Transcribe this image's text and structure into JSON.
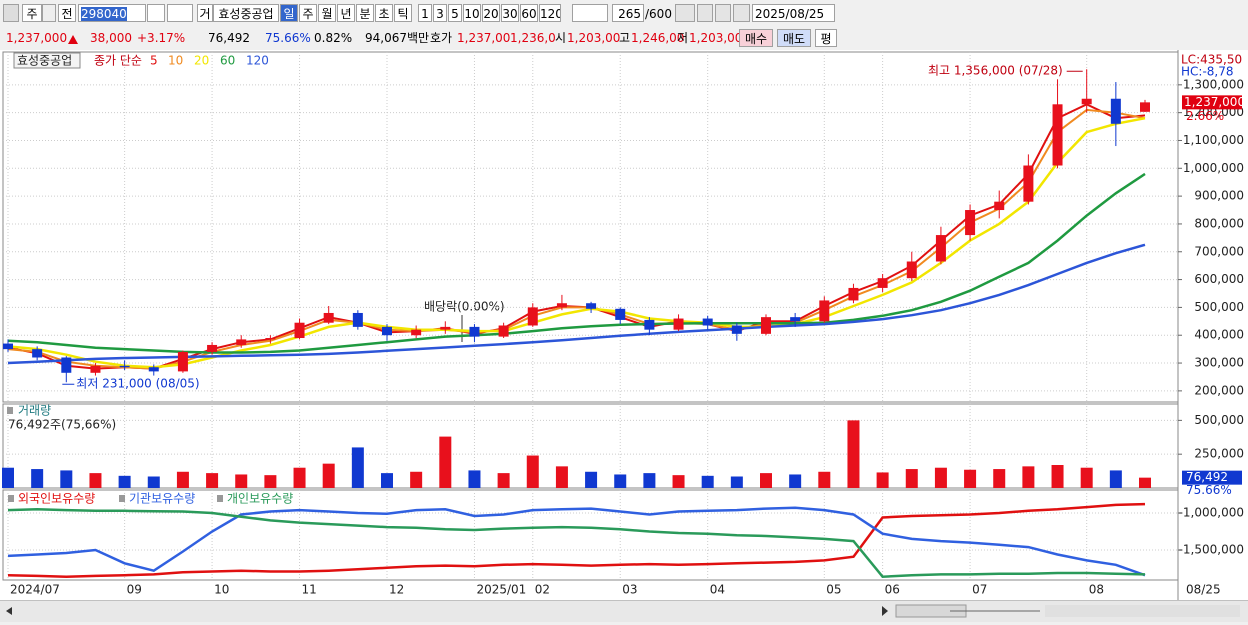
{
  "toolbar": {
    "market": "주",
    "mode": "전",
    "code": "298040",
    "trade": "거",
    "name": "효성중공업",
    "periods": [
      "일",
      "주",
      "월",
      "년",
      "분",
      "초",
      "틱"
    ],
    "intervals": [
      "1",
      "3",
      "5",
      "10",
      "20",
      "30",
      "60",
      "120"
    ],
    "count": "265",
    "max": "/600",
    "date": "2025/08/25"
  },
  "quote": {
    "price": "1,237,000",
    "change": "38,000",
    "rate": "+3.17%",
    "volume": "76,492",
    "volume_rate": "75.66%",
    "turnover": "0.82%",
    "amount": "94,067백만",
    "ask_label": "호가",
    "ask": "1,237,00",
    "bid": "1,236,0",
    "open_label": "시",
    "open": "1,203,00",
    "high_label": "고",
    "high": "1,246,00",
    "low_label": "저",
    "low": "1,203,00",
    "buy": "매수",
    "sell": "매도",
    "avg": "평"
  },
  "chart_data": [
    {
      "type": "candlestick",
      "name": "효성중공업",
      "legend_title": "종가 단순",
      "up_color": "#e8101c",
      "down_color": "#1038d0",
      "open": [
        370000,
        350000,
        320000,
        265000,
        290000,
        285000,
        270000,
        340000,
        365000,
        385000,
        390000,
        445000,
        480000,
        430000,
        400000,
        420000,
        430000,
        395000,
        435000,
        500000,
        515000,
        495000,
        455000,
        420000,
        460000,
        435000,
        405000,
        465000,
        450000,
        525000,
        570000,
        605000,
        665000,
        760000,
        850000,
        880000,
        1010000,
        1230000,
        1250000,
        1203000
      ],
      "high": [
        385000,
        360000,
        325000,
        300000,
        310000,
        295000,
        345000,
        375000,
        400000,
        400000,
        460000,
        505000,
        490000,
        440000,
        435000,
        450000,
        440000,
        445000,
        515000,
        545000,
        520000,
        500000,
        465000,
        475000,
        470000,
        445000,
        475000,
        480000,
        540000,
        585000,
        620000,
        700000,
        790000,
        870000,
        920000,
        1050000,
        1320000,
        1356000,
        1310000,
        1246000
      ],
      "low": [
        340000,
        310000,
        231000,
        255000,
        275000,
        255000,
        265000,
        330000,
        355000,
        370000,
        385000,
        440000,
        420000,
        380000,
        390000,
        405000,
        375000,
        390000,
        430000,
        490000,
        480000,
        440000,
        400000,
        415000,
        420000,
        380000,
        400000,
        430000,
        445000,
        515000,
        555000,
        595000,
        655000,
        740000,
        820000,
        870000,
        1000000,
        1200000,
        1080000,
        1203000
      ],
      "close": [
        350000,
        320000,
        265000,
        290000,
        285000,
        270000,
        340000,
        365000,
        385000,
        390000,
        445000,
        480000,
        430000,
        400000,
        420000,
        430000,
        395000,
        435000,
        500000,
        515000,
        495000,
        455000,
        420000,
        460000,
        435000,
        405000,
        465000,
        450000,
        525000,
        570000,
        605000,
        665000,
        760000,
        850000,
        880000,
        1010000,
        1230000,
        1250000,
        1160000,
        1237000
      ],
      "series": [
        {
          "name": "5",
          "color": "#e01010",
          "values": [
            355000,
            335000,
            290000,
            280000,
            285000,
            280000,
            315000,
            350000,
            375000,
            385000,
            425000,
            465000,
            445000,
            410000,
            415000,
            425000,
            405000,
            425000,
            485000,
            505000,
            500000,
            465000,
            430000,
            450000,
            440000,
            415000,
            450000,
            450000,
            505000,
            555000,
            595000,
            650000,
            740000,
            830000,
            870000,
            980000,
            1180000,
            1230000,
            1180000,
            1190000
          ]
        },
        {
          "name": "10",
          "color": "#f08a20",
          "values": [
            350000,
            340000,
            305000,
            290000,
            285000,
            280000,
            305000,
            340000,
            365000,
            380000,
            415000,
            455000,
            445000,
            420000,
            415000,
            420000,
            410000,
            420000,
            470000,
            500000,
            500000,
            475000,
            440000,
            445000,
            440000,
            420000,
            440000,
            445000,
            490000,
            540000,
            580000,
            630000,
            715000,
            805000,
            855000,
            950000,
            1130000,
            1210000,
            1200000,
            1180000
          ]
        },
        {
          "name": "20",
          "color": "#f2e600",
          "values": [
            360000,
            350000,
            330000,
            305000,
            290000,
            285000,
            295000,
            320000,
            345000,
            365000,
            395000,
            430000,
            445000,
            430000,
            420000,
            420000,
            415000,
            415000,
            445000,
            475000,
            495000,
            485000,
            460000,
            450000,
            445000,
            430000,
            430000,
            440000,
            465000,
            505000,
            545000,
            590000,
            660000,
            740000,
            800000,
            880000,
            1020000,
            1130000,
            1160000,
            1180000
          ]
        },
        {
          "name": "60",
          "color": "#1f9a40",
          "values": [
            380000,
            375000,
            365000,
            355000,
            350000,
            345000,
            340000,
            338000,
            338000,
            340000,
            345000,
            355000,
            365000,
            375000,
            385000,
            395000,
            400000,
            405000,
            415000,
            425000,
            432000,
            438000,
            440000,
            442000,
            443000,
            443000,
            443000,
            443000,
            445000,
            455000,
            470000,
            490000,
            520000,
            560000,
            610000,
            660000,
            740000,
            830000,
            910000,
            980000
          ]
        },
        {
          "name": "120",
          "color": "#2c55d8",
          "values": [
            300000,
            305000,
            310000,
            315000,
            318000,
            320000,
            322000,
            324000,
            326000,
            328000,
            330000,
            333000,
            338000,
            344000,
            350000,
            356000,
            362000,
            368000,
            375000,
            382000,
            390000,
            398000,
            405000,
            412000,
            418000,
            424000,
            430000,
            435000,
            440000,
            448000,
            458000,
            472000,
            490000,
            515000,
            545000,
            580000,
            620000,
            660000,
            695000,
            725000
          ]
        }
      ],
      "ylim": [
        160000,
        1418000
      ],
      "yticks": [
        {
          "value": 200000,
          "label": "200,000"
        },
        {
          "value": 300000,
          "label": "300,000"
        },
        {
          "value": 400000,
          "label": "400,000"
        },
        {
          "value": 500000,
          "label": "500,000"
        },
        {
          "value": 600000,
          "label": "600,000"
        },
        {
          "value": 700000,
          "label": "700,000"
        },
        {
          "value": 800000,
          "label": "800,000"
        },
        {
          "value": 900000,
          "label": "900,000"
        },
        {
          "value": 1000000,
          "label": "1,000,000"
        },
        {
          "value": 1100000,
          "label": "1,100,000"
        },
        {
          "value": 1200000,
          "label": "1,200,000"
        },
        {
          "value": 1300000,
          "label": "1,300,000"
        }
      ],
      "grid": true,
      "annotations": [
        {
          "label": "최고 1,356,000 (07/28)",
          "value": 1356000,
          "kind": "high"
        },
        {
          "label": "최저 231,000 (08/05)",
          "value": 231000,
          "kind": "low"
        }
      ],
      "note": "배당락(0.00%)",
      "lc": "LC:435,50",
      "hc": "HC:-8,78",
      "price_tag": "1,237,000",
      "change_tag": "2.66%"
    },
    {
      "type": "bar",
      "title": "거래량",
      "subtitle": "76,492주(75,66%)",
      "values": [
        150000,
        140000,
        130000,
        110000,
        90000,
        85000,
        120000,
        110000,
        100000,
        95000,
        150000,
        180000,
        300000,
        110000,
        120000,
        380000,
        130000,
        110000,
        240000,
        160000,
        120000,
        100000,
        110000,
        95000,
        90000,
        85000,
        110000,
        100000,
        120000,
        500000,
        115000,
        140000,
        150000,
        135000,
        140000,
        160000,
        170000,
        150000,
        130000,
        76492
      ],
      "ylim": [
        0,
        621000
      ],
      "yticks": [
        {
          "value": 250000,
          "label": "250,000"
        },
        {
          "value": 500000,
          "label": "500,000"
        }
      ],
      "grid": true,
      "last_tag": "76,492",
      "last_rate": "75.66%"
    },
    {
      "type": "line",
      "categories": [
        "2024/07",
        null,
        null,
        null,
        "09",
        null,
        null,
        "10",
        null,
        null,
        "11",
        null,
        null,
        "12",
        null,
        null,
        "2025/01",
        null,
        "02",
        null,
        null,
        "03",
        null,
        null,
        "04",
        null,
        null,
        null,
        "05",
        null,
        "06",
        null,
        null,
        "07",
        null,
        null,
        null,
        "08",
        null,
        null
      ],
      "series": [
        {
          "name": "외국인보유수량",
          "color": "#e01010",
          "values": [
            -1840000,
            -1850000,
            -1860000,
            -1850000,
            -1840000,
            -1830000,
            -1800000,
            -1790000,
            -1780000,
            -1790000,
            -1790000,
            -1780000,
            -1760000,
            -1740000,
            -1720000,
            -1710000,
            -1720000,
            -1700000,
            -1690000,
            -1700000,
            -1710000,
            -1700000,
            -1690000,
            -1700000,
            -1690000,
            -1680000,
            -1670000,
            -1660000,
            -1640000,
            -1590000,
            -1060000,
            -1040000,
            -1030000,
            -1020000,
            -1000000,
            -970000,
            -950000,
            -920000,
            -890000,
            -880000
          ]
        },
        {
          "name": "기관보유수량",
          "color": "#3060e0",
          "values": [
            -1580000,
            -1560000,
            -1540000,
            -1500000,
            -1680000,
            -1780000,
            -1520000,
            -1250000,
            -1020000,
            -980000,
            -960000,
            -980000,
            -1000000,
            -1010000,
            -960000,
            -950000,
            -1040000,
            -1020000,
            -960000,
            -950000,
            -940000,
            -980000,
            -1020000,
            -980000,
            -970000,
            -960000,
            -940000,
            -930000,
            -960000,
            -1020000,
            -1280000,
            -1350000,
            -1380000,
            -1400000,
            -1430000,
            -1460000,
            -1560000,
            -1640000,
            -1700000,
            -1840000
          ]
        },
        {
          "name": "개인보유수량",
          "color": "#2a9a5a",
          "values": [
            -960000,
            -950000,
            -960000,
            -970000,
            -970000,
            -975000,
            -980000,
            -1000000,
            -1050000,
            -1100000,
            -1130000,
            -1150000,
            -1170000,
            -1190000,
            -1200000,
            -1220000,
            -1230000,
            -1210000,
            -1200000,
            -1190000,
            -1200000,
            -1220000,
            -1250000,
            -1270000,
            -1280000,
            -1300000,
            -1310000,
            -1330000,
            -1350000,
            -1380000,
            -1860000,
            -1840000,
            -1830000,
            -1830000,
            -1820000,
            -1820000,
            -1810000,
            -1810000,
            -1820000,
            -1830000
          ]
        }
      ],
      "ylim": [
        -1905000,
        -689000
      ],
      "yticks": [
        {
          "value": -1000000,
          "label": "-1,000,000"
        },
        {
          "value": -1500000,
          "label": "-1,500,000"
        }
      ],
      "grid": true,
      "date_tag": "08/25"
    }
  ]
}
